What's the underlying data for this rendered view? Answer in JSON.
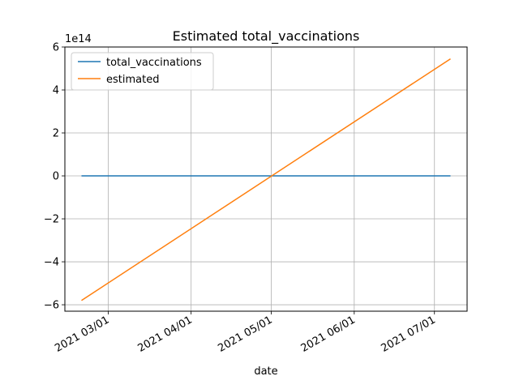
{
  "chart_data": {
    "type": "line",
    "title": "Estimated total_vaccinations",
    "xlabel": "date",
    "ylabel": "",
    "y_offset_label": "1e14",
    "y_scale_exponent": 14,
    "x_range": [
      "2021-02-19",
      "2021-07-07"
    ],
    "ylim": [
      -6.3,
      6.0
    ],
    "y_ticks": [
      -6,
      -4,
      -2,
      0,
      2,
      4,
      6
    ],
    "y_tick_labels": [
      "−6",
      "−4",
      "−2",
      "0",
      "2",
      "4",
      "6"
    ],
    "x_ticks": [
      "2021-03-01",
      "2021-04-01",
      "2021-05-01",
      "2021-06-01",
      "2021-07-01"
    ],
    "x_tick_labels": [
      "2021 03/01",
      "2021 04/01",
      "2021 05/01",
      "2021 06/01",
      "2021 07/01"
    ],
    "grid": true,
    "legend": "top-left",
    "series": [
      {
        "name": "total_vaccinations",
        "color": "#1f77b4",
        "x": [
          "2021-02-19",
          "2021-07-07"
        ],
        "y": [
          0.0,
          0.0
        ]
      },
      {
        "name": "estimated",
        "color": "#ff7f0e",
        "x": [
          "2021-02-19",
          "2021-07-07"
        ],
        "y": [
          -5.8,
          5.45
        ]
      }
    ]
  }
}
